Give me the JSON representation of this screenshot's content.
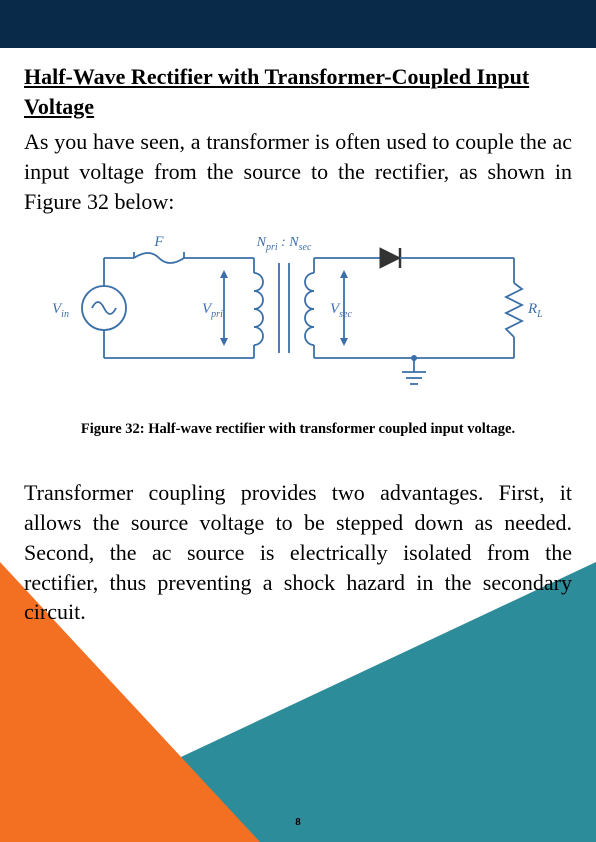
{
  "heading": "Half-Wave Rectifier with Transformer-Coupled Input Voltage",
  "para1": "As you have seen, a transformer is often used to couple the ac input voltage from the source to the rectifier, as shown in Figure 32 below:",
  "caption": "Figure 32: Half-wave rectifier with transformer coupled input voltage.",
  "para2": "Transformer coupling provides two advantages. First, it allows the source voltage to be stepped down as needed. Second, the ac source is electrically isolated from the rectifier, thus preventing a shock hazard in the secondary circuit.",
  "page_number": "8",
  "circuit": {
    "type": "schematic",
    "labels": {
      "vin": "V",
      "vin_sub": "in",
      "vpri": "V",
      "vpri_sub": "pri",
      "vsec": "V",
      "vsec_sub": "sec",
      "rl": "R",
      "rl_sub": "L",
      "fuse": "F",
      "ratio_left": "N",
      "ratio_left_sub": "pri",
      "ratio_right": "N",
      "ratio_right_sub": "sec"
    },
    "colors": {
      "stroke": "#3b6fa8",
      "text": "#3b6fa8",
      "diode_fill": "#333333",
      "bg": "#ffffff"
    },
    "stroke_width": 1.8,
    "font_family": "Georgia, serif",
    "font_size_label": 15,
    "font_size_sub": 10
  },
  "page_colors": {
    "top_band": "#0a2a4a",
    "triangle_orange": "#f36f21",
    "triangle_teal": "#2d8c99",
    "page_bg": "#ffffff"
  }
}
